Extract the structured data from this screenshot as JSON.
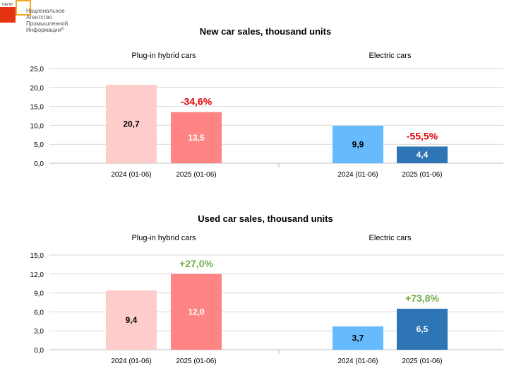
{
  "logo": {
    "abbr": "НАПИ",
    "name_lines": [
      "Национальное",
      "Агентство",
      "Промышленной",
      "Информации"
    ],
    "registered": "®"
  },
  "colors": {
    "phev_2024": "#ffcccc",
    "phev_2025": "#ff8585",
    "ev_2024": "#66bbff",
    "ev_2025": "#2e75b6",
    "decline": "#e00000",
    "growth": "#70ad47",
    "grid": "#d9d9d9"
  },
  "chart_data": [
    {
      "type": "bar",
      "title": "New car sales, thousand units",
      "ylim": [
        0,
        25
      ],
      "yticks": [
        "0,0",
        "5,0",
        "10,0",
        "15,0",
        "20,0",
        "25,0"
      ],
      "ytick_values": [
        0,
        5,
        10,
        15,
        20,
        25
      ],
      "grid": true,
      "groups": [
        {
          "label": "Plug-in hybrid cars",
          "categories": [
            "2024 (01-06)",
            "2025 (01-06)"
          ],
          "values": [
            20.7,
            13.5
          ],
          "value_labels": [
            "20,7",
            "13,5"
          ],
          "change": "-34,6%",
          "change_kind": "decline"
        },
        {
          "label": "Electric cars",
          "categories": [
            "2024 (01-06)",
            "2025 (01-06)"
          ],
          "values": [
            9.9,
            4.4
          ],
          "value_labels": [
            "9,9",
            "4,4"
          ],
          "change": "-55,5%",
          "change_kind": "decline"
        }
      ]
    },
    {
      "type": "bar",
      "title": "Used car sales, thousand units",
      "ylim": [
        0,
        15
      ],
      "yticks": [
        "0,0",
        "3,0",
        "6,0",
        "9,0",
        "12,0",
        "15,0"
      ],
      "ytick_values": [
        0,
        3,
        6,
        9,
        12,
        15
      ],
      "grid": true,
      "groups": [
        {
          "label": "Plug-in hybrid cars",
          "categories": [
            "2024 (01-06)",
            "2025 (01-06)"
          ],
          "values": [
            9.4,
            12.0
          ],
          "value_labels": [
            "9,4",
            "12,0"
          ],
          "change": "+27,0%",
          "change_kind": "growth"
        },
        {
          "label": "Electric cars",
          "categories": [
            "2024 (01-06)",
            "2025 (01-06)"
          ],
          "values": [
            3.7,
            6.5
          ],
          "value_labels": [
            "3,7",
            "6,5"
          ],
          "change": "+73,8%",
          "change_kind": "growth"
        }
      ]
    }
  ]
}
